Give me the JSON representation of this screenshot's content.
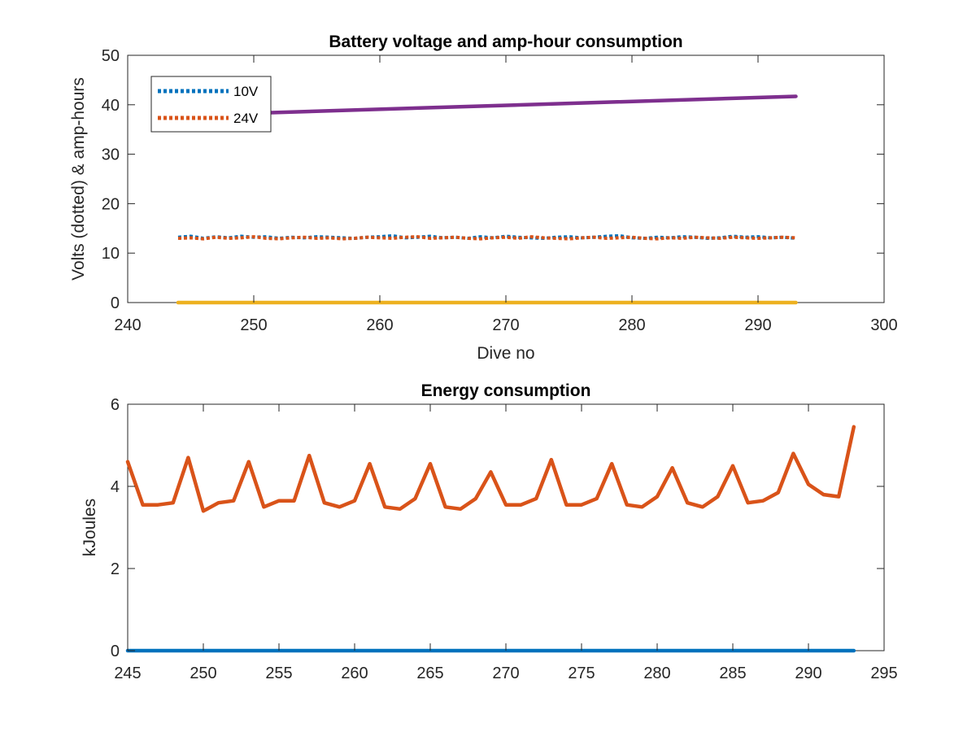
{
  "chart_data": [
    {
      "type": "line",
      "title": "Battery voltage and amp-hour consumption",
      "xlabel": "Dive no",
      "ylabel": "Volts (dotted) & amp-hours",
      "xlim": [
        240,
        300
      ],
      "ylim": [
        0,
        50
      ],
      "xticks": [
        240,
        250,
        260,
        270,
        280,
        290,
        300
      ],
      "yticks": [
        0,
        10,
        20,
        30,
        40,
        50
      ],
      "grid": false,
      "legend_position": "top-left",
      "series": [
        {
          "name": "10V",
          "color": "#0072BD",
          "style": "dotted",
          "x": [
            244,
            245,
            246,
            247,
            248,
            249,
            250,
            251,
            252,
            253,
            254,
            255,
            256,
            257,
            258,
            259,
            260,
            261,
            262,
            263,
            264,
            265,
            266,
            267,
            268,
            269,
            270,
            271,
            272,
            273,
            274,
            275,
            276,
            277,
            278,
            279,
            280,
            281,
            282,
            283,
            284,
            285,
            286,
            287,
            288,
            289,
            290,
            291,
            292,
            293
          ],
          "y": [
            13.2,
            13.4,
            13.0,
            13.3,
            13.1,
            13.4,
            13.2,
            13.3,
            13.0,
            13.2,
            13.1,
            13.3,
            13.2,
            13.1,
            13.0,
            13.2,
            13.3,
            13.5,
            13.1,
            13.2,
            13.4,
            13.1,
            13.2,
            13.0,
            13.3,
            13.1,
            13.4,
            13.2,
            13.1,
            13.0,
            13.2,
            13.3,
            13.1,
            13.2,
            13.4,
            13.5,
            13.1,
            13.0,
            13.2,
            13.1,
            13.3,
            13.2,
            13.0,
            13.1,
            13.4,
            13.2,
            13.3,
            13.1,
            13.2,
            13.0
          ]
        },
        {
          "name": "24V",
          "color": "#D95319",
          "style": "dotted",
          "x": [
            244,
            245,
            246,
            247,
            248,
            249,
            250,
            251,
            252,
            253,
            254,
            255,
            256,
            257,
            258,
            259,
            260,
            261,
            262,
            263,
            264,
            265,
            266,
            267,
            268,
            269,
            270,
            271,
            272,
            273,
            274,
            275,
            276,
            277,
            278,
            279,
            280,
            281,
            282,
            283,
            284,
            285,
            286,
            287,
            288,
            289,
            290,
            291,
            292,
            293
          ],
          "y": [
            13.0,
            13.1,
            12.9,
            13.2,
            13.0,
            13.1,
            13.3,
            13.0,
            12.9,
            13.1,
            13.2,
            13.0,
            13.1,
            12.9,
            13.0,
            13.2,
            13.1,
            13.0,
            13.2,
            13.3,
            13.0,
            13.1,
            13.2,
            13.0,
            12.9,
            13.1,
            13.2,
            13.0,
            13.3,
            13.1,
            13.0,
            12.9,
            13.1,
            13.2,
            13.0,
            13.1,
            13.2,
            13.0,
            12.9,
            13.1,
            13.0,
            13.2,
            13.1,
            13.0,
            13.2,
            13.1,
            13.0,
            13.1,
            13.2,
            13.1
          ]
        },
        {
          "color": "#EDB120",
          "style": "solid",
          "x": [
            244,
            293
          ],
          "y": [
            0,
            0
          ]
        },
        {
          "color": "#7E2F8E",
          "style": "solid",
          "x": [
            248.8,
            293
          ],
          "y": [
            38.2,
            41.7
          ]
        }
      ]
    },
    {
      "type": "line",
      "title": "Energy consumption",
      "xlabel": "",
      "ylabel": "kJoules",
      "xlim": [
        245,
        295
      ],
      "ylim": [
        0,
        6
      ],
      "xticks": [
        245,
        250,
        255,
        260,
        265,
        270,
        275,
        280,
        285,
        290,
        295
      ],
      "yticks": [
        0,
        2,
        4,
        6
      ],
      "grid": false,
      "series": [
        {
          "color": "#0072BD",
          "style": "solid",
          "x": [
            245,
            293
          ],
          "y": [
            0,
            0
          ]
        },
        {
          "color": "#D95319",
          "style": "solid",
          "x": [
            245,
            246,
            247,
            248,
            249,
            250,
            251,
            252,
            253,
            254,
            255,
            256,
            257,
            258,
            259,
            260,
            261,
            262,
            263,
            264,
            265,
            266,
            267,
            268,
            269,
            270,
            271,
            272,
            273,
            274,
            275,
            276,
            277,
            278,
            279,
            280,
            281,
            282,
            283,
            284,
            285,
            286,
            287,
            288,
            289,
            290,
            291,
            292,
            293
          ],
          "y": [
            4.6,
            3.55,
            3.55,
            3.6,
            4.7,
            3.4,
            3.6,
            3.65,
            4.6,
            3.5,
            3.65,
            3.65,
            4.75,
            3.6,
            3.5,
            3.65,
            4.55,
            3.5,
            3.45,
            3.7,
            4.55,
            3.5,
            3.45,
            3.7,
            4.35,
            3.55,
            3.55,
            3.7,
            4.65,
            3.55,
            3.55,
            3.7,
            4.55,
            3.55,
            3.5,
            3.75,
            4.45,
            3.6,
            3.5,
            3.75,
            4.5,
            3.6,
            3.65,
            3.85,
            4.8,
            4.05,
            3.8,
            3.75,
            5.45
          ]
        }
      ]
    }
  ]
}
